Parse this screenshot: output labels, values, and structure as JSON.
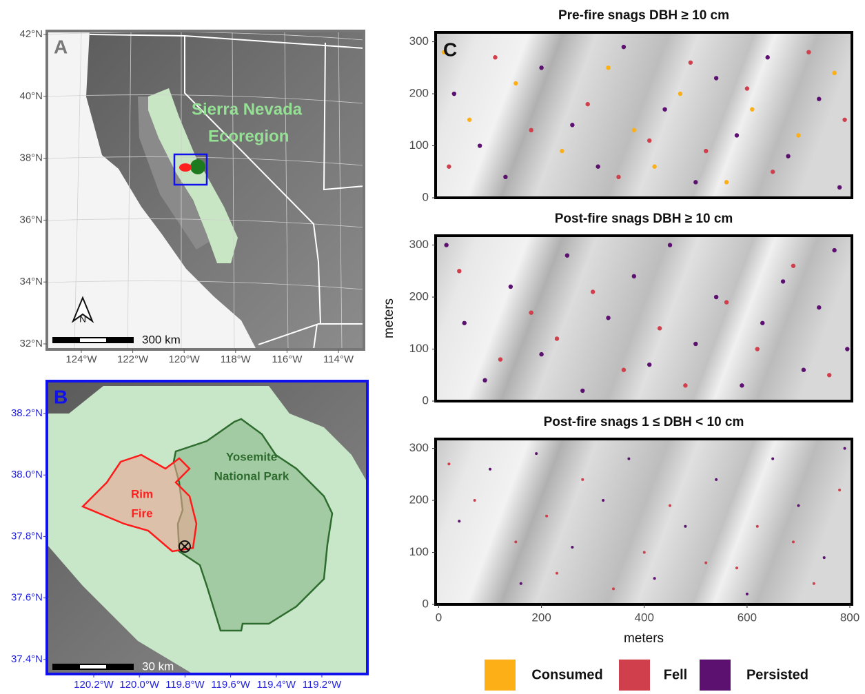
{
  "panel_a": {
    "label": "A",
    "annotation": [
      "Sierra Nevada",
      "Ecoregion"
    ],
    "north": "N",
    "scale": "300 km",
    "lat_ticks": [
      {
        "value": 42,
        "label": "42°N"
      },
      {
        "value": 40,
        "label": "40°N"
      },
      {
        "value": 38,
        "label": "38°N"
      },
      {
        "value": 36,
        "label": "36°N"
      },
      {
        "value": 34,
        "label": "34°N"
      },
      {
        "value": 32,
        "label": "32°N"
      }
    ],
    "lon_ticks": [
      {
        "value": -124,
        "label": "124°W"
      },
      {
        "value": -122,
        "label": "122°W"
      },
      {
        "value": -120,
        "label": "120°W"
      },
      {
        "value": -118,
        "label": "118°W"
      },
      {
        "value": -116,
        "label": "116°W"
      },
      {
        "value": -114,
        "label": "114°W"
      }
    ]
  },
  "panel_b": {
    "label": "B",
    "rim_fire": [
      "Rim",
      "Fire"
    ],
    "park": [
      "Yosemite",
      "National Park"
    ],
    "scale": "30 km",
    "lat_ticks": [
      {
        "value": 38.2,
        "label": "38.2°N"
      },
      {
        "value": 38.0,
        "label": "38.0°N"
      },
      {
        "value": 37.8,
        "label": "37.8°N"
      },
      {
        "value": 37.6,
        "label": "37.6°N"
      },
      {
        "value": 37.4,
        "label": "37.4°N"
      }
    ],
    "lon_ticks": [
      {
        "value": -120.2,
        "label": "120.2°W"
      },
      {
        "value": -120.0,
        "label": "120.0°W"
      },
      {
        "value": -119.8,
        "label": "119.8°W"
      },
      {
        "value": -119.6,
        "label": "119.6°W"
      },
      {
        "value": -119.4,
        "label": "119.4°W"
      },
      {
        "value": -119.2,
        "label": "119.2°W"
      }
    ]
  },
  "panel_c": {
    "label": "C"
  },
  "chart_data": [
    {
      "type": "scatter",
      "title": "Pre-fire snags DBH ≥ 10 cm",
      "xlim": [
        -6,
        804
      ],
      "ylim": [
        0,
        318
      ],
      "yticks": [
        0,
        100,
        200,
        300
      ],
      "series": [
        {
          "name": "Consumed",
          "color": "#fcaf17",
          "x": [
            10,
            60,
            150,
            240,
            330,
            380,
            420,
            470,
            560,
            610,
            700,
            770
          ],
          "y": [
            280,
            150,
            220,
            90,
            250,
            130,
            60,
            200,
            30,
            170,
            120,
            240
          ]
        },
        {
          "name": "Fell",
          "color": "#cf3f4c",
          "x": [
            20,
            110,
            180,
            290,
            350,
            410,
            490,
            520,
            600,
            650,
            720,
            790
          ],
          "y": [
            60,
            270,
            130,
            180,
            40,
            110,
            260,
            90,
            210,
            50,
            280,
            150
          ]
        },
        {
          "name": "Persisted",
          "color": "#5c1070",
          "x": [
            30,
            80,
            130,
            200,
            260,
            310,
            360,
            440,
            500,
            540,
            580,
            640,
            680,
            740,
            780
          ],
          "y": [
            200,
            100,
            40,
            250,
            140,
            60,
            290,
            170,
            30,
            230,
            120,
            270,
            80,
            190,
            20
          ]
        }
      ]
    },
    {
      "type": "scatter",
      "title": "Post-fire snags DBH ≥ 10 cm",
      "y_label": "meters",
      "xlim": [
        -6,
        804
      ],
      "ylim": [
        0,
        318
      ],
      "yticks": [
        0,
        100,
        200,
        300
      ],
      "series": [
        {
          "name": "Fell",
          "color": "#cf3f4c",
          "x": [
            40,
            120,
            180,
            230,
            300,
            360,
            430,
            480,
            560,
            620,
            690,
            760
          ],
          "y": [
            250,
            80,
            170,
            120,
            210,
            60,
            140,
            30,
            190,
            100,
            260,
            50
          ]
        },
        {
          "name": "Persisted",
          "color": "#5c1070",
          "x": [
            15,
            50,
            90,
            140,
            200,
            250,
            280,
            330,
            380,
            410,
            450,
            500,
            540,
            590,
            630,
            670,
            710,
            740,
            770,
            795
          ],
          "y": [
            300,
            150,
            40,
            220,
            90,
            280,
            20,
            160,
            240,
            70,
            300,
            110,
            200,
            30,
            150,
            230,
            60,
            180,
            290,
            100
          ]
        }
      ]
    },
    {
      "type": "scatter",
      "title": "Post-fire snags 1 ≤ DBH < 10 cm",
      "x_label": "meters",
      "xlim": [
        -6,
        804
      ],
      "ylim": [
        0,
        318
      ],
      "xticks": [
        0,
        200,
        400,
        600,
        800
      ],
      "yticks": [
        0,
        100,
        200,
        300
      ],
      "series": [
        {
          "name": "Fell",
          "color": "#cf3f4c",
          "x": [
            20,
            70,
            150,
            210,
            230,
            280,
            340,
            400,
            450,
            520,
            580,
            620,
            690,
            730,
            780
          ],
          "y": [
            270,
            200,
            120,
            170,
            60,
            240,
            30,
            100,
            190,
            80,
            70,
            150,
            120,
            40,
            220
          ]
        },
        {
          "name": "Persisted",
          "color": "#5c1070",
          "x": [
            40,
            100,
            160,
            190,
            260,
            320,
            370,
            420,
            480,
            540,
            600,
            650,
            700,
            750,
            790
          ],
          "y": [
            160,
            260,
            40,
            290,
            110,
            200,
            280,
            50,
            150,
            240,
            20,
            280,
            190,
            90,
            300
          ]
        }
      ]
    }
  ]
}
